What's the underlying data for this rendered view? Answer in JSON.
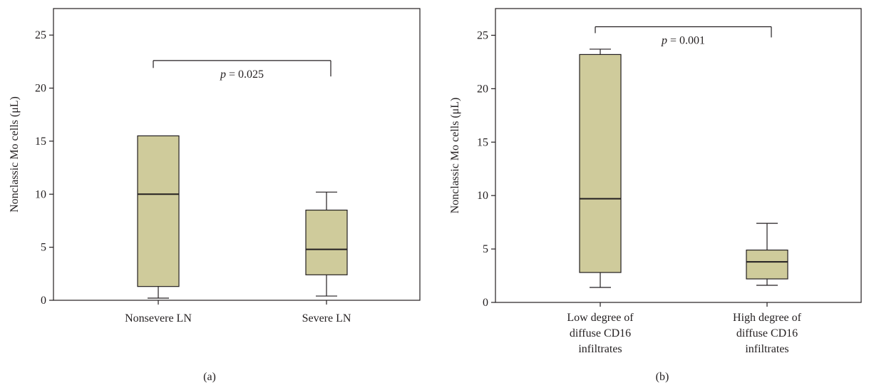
{
  "colors": {
    "box_fill": "#cfcb9b",
    "line": "#231f20",
    "background": "#ffffff"
  },
  "chart_data": [
    {
      "type": "box",
      "panel_label": "(a)",
      "ylabel": "Nonclassic Mo cells (μL)",
      "ylim": [
        0,
        27.5
      ],
      "yticks": [
        0,
        5,
        10,
        15,
        20,
        25
      ],
      "grid": false,
      "categories": [
        {
          "label_lines": [
            "Nonsevere LN"
          ],
          "whisker_low": 0.2,
          "q1": 1.3,
          "median": 10.0,
          "q3": 15.5,
          "whisker_high": 15.5
        },
        {
          "label_lines": [
            "Severe LN"
          ],
          "whisker_low": 0.4,
          "q1": 2.4,
          "median": 4.8,
          "q3": 8.5,
          "whisker_high": 10.2
        }
      ],
      "annotation": {
        "text": "p = 0.025",
        "p_label": "p",
        "p_value": "= 0.025",
        "bracket_y": 22.6,
        "left_end_y": 21.9,
        "right_end_y": 21.1
      }
    },
    {
      "type": "box",
      "panel_label": "(b)",
      "ylabel": "Nonclassic Mo cells (μL)",
      "ylim": [
        0,
        27.5
      ],
      "yticks": [
        0,
        5,
        10,
        15,
        20,
        25
      ],
      "grid": false,
      "categories": [
        {
          "label_lines": [
            "Low degree of",
            "diffuse CD16",
            "infiltrates"
          ],
          "whisker_low": 1.4,
          "q1": 2.8,
          "median": 9.7,
          "q3": 23.2,
          "whisker_high": 23.7
        },
        {
          "label_lines": [
            "High degree of",
            "diffuse CD16",
            "infiltrates"
          ],
          "whisker_low": 1.6,
          "q1": 2.2,
          "median": 3.8,
          "q3": 4.9,
          "whisker_high": 7.4
        }
      ],
      "annotation": {
        "text": "p = 0.001",
        "p_label": "p",
        "p_value": "= 0.001",
        "bracket_y": 25.8,
        "left_end_y": 25.2,
        "right_end_y": 24.8
      }
    }
  ]
}
